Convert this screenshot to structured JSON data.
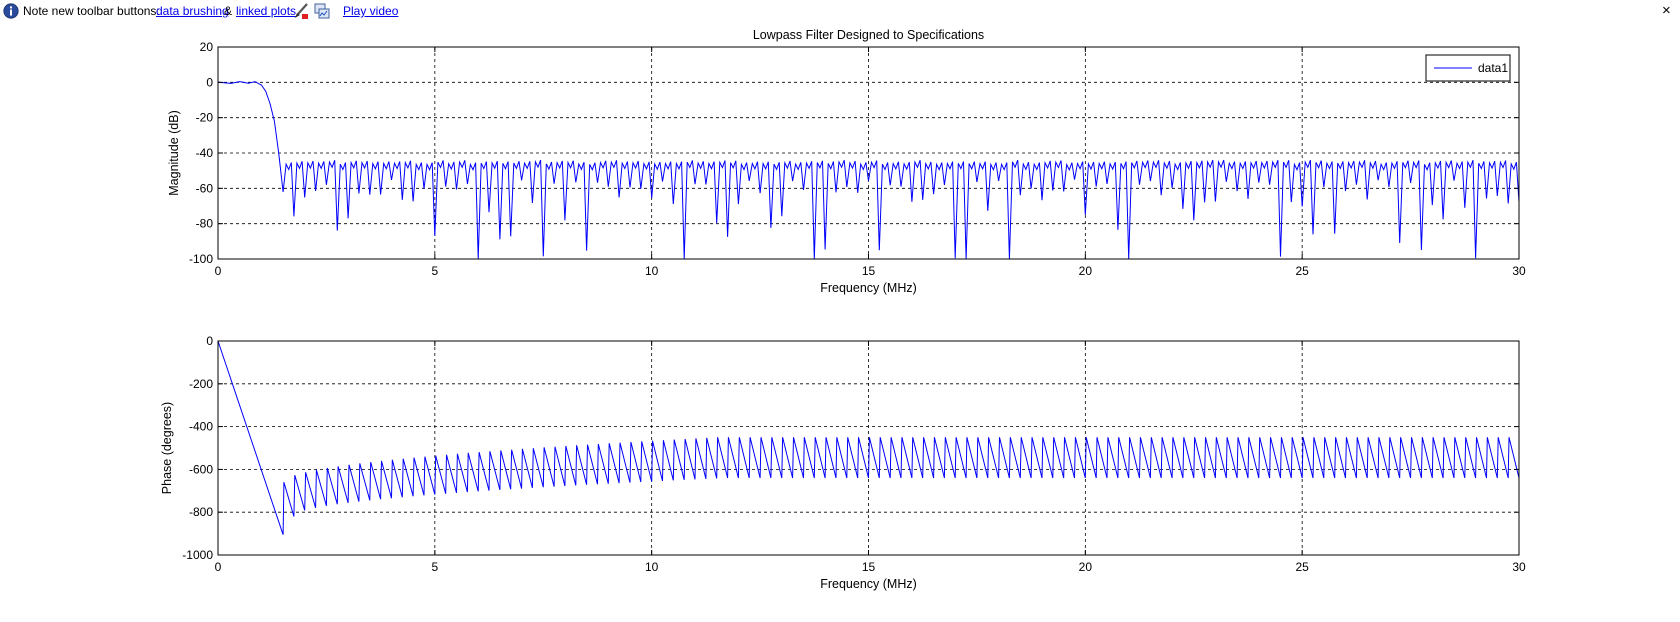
{
  "infobar": {
    "note": "Note new toolbar buttons:",
    "link_brushing": "data brushing",
    "amp": "&",
    "link_linked": "linked plots",
    "link_video": "Play video",
    "close": "×",
    "icons": [
      "info-icon",
      "brush-icon",
      "linked-plots-icon"
    ]
  },
  "chart_data": [
    {
      "type": "line",
      "title": "Lowpass Filter Designed to Specifications",
      "xlabel": "Frequency (MHz)",
      "ylabel": "Magnitude (dB)",
      "xlim": [
        0,
        30
      ],
      "ylim": [
        -100,
        20
      ],
      "xticks": [
        "0",
        "5",
        "10",
        "15",
        "20",
        "25",
        "30"
      ],
      "yticks": [
        "20",
        "0",
        "-20",
        "-40",
        "-60",
        "-80",
        "-100"
      ],
      "grid": true,
      "legend": {
        "position": "top-right",
        "entries": [
          "data1"
        ]
      },
      "color": "#0000ff",
      "series": [
        {
          "name": "data1",
          "x": [
            0,
            0.3,
            0.5,
            0.7,
            0.85,
            1.0,
            1.1,
            1.2,
            1.3,
            1.4,
            1.5
          ],
          "y": [
            0,
            -0.6,
            0.4,
            -0.5,
            0.4,
            -1.5,
            -5,
            -12,
            -22,
            -40,
            -62
          ],
          "stopband": {
            "start_mhz": 1.5,
            "lobe_spacing_mhz": 0.25,
            "lobe_peak_db": -48,
            "null_depth_db": [
              -55,
              -100
            ]
          }
        }
      ]
    },
    {
      "type": "line",
      "title": "",
      "xlabel": "Frequency (MHz)",
      "ylabel": "Phase (degrees)",
      "xlim": [
        0,
        30
      ],
      "ylim": [
        -1000,
        0
      ],
      "xticks": [
        "0",
        "5",
        "10",
        "15",
        "20",
        "25",
        "30"
      ],
      "yticks": [
        "0",
        "-200",
        "-400",
        "-600",
        "-800",
        "-1000"
      ],
      "grid": true,
      "color": "#0000ff",
      "series": [
        {
          "x": [
            0,
            1.5
          ],
          "y": [
            0,
            -905
          ],
          "stopband": {
            "start_mhz": 1.5,
            "lobe_spacing_mhz": 0.25,
            "tooth_top_deg": [
              -660,
              -450
            ],
            "tooth_bottom_deg": [
              -820,
              -640
            ]
          }
        }
      ]
    }
  ]
}
